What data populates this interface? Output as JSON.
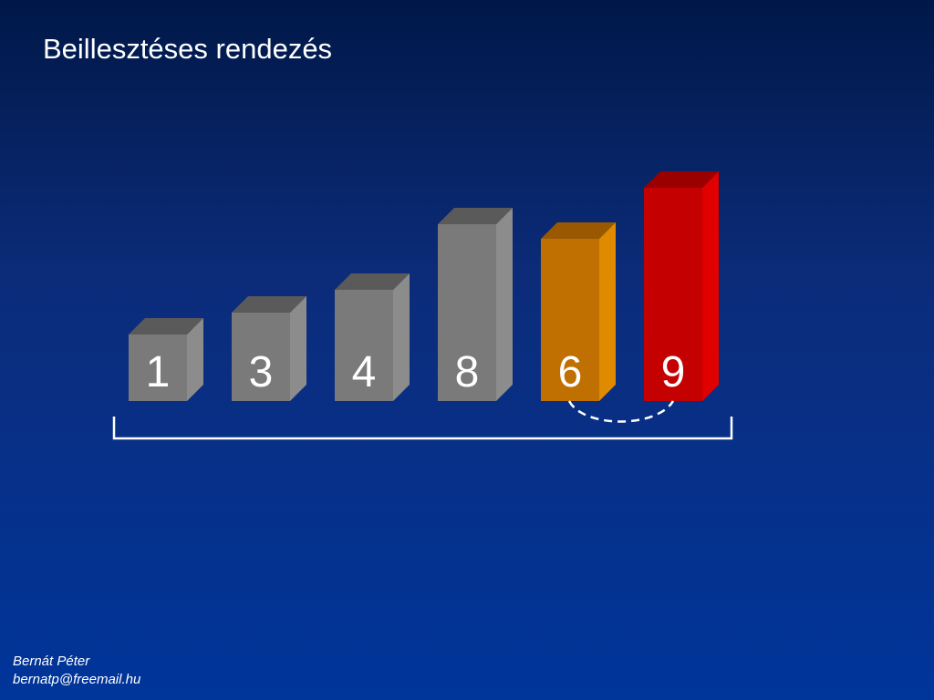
{
  "slide": {
    "title": "Beillesztéses rendezés"
  },
  "bars": [
    {
      "label": "1",
      "value": 1,
      "state": "sorted"
    },
    {
      "label": "3",
      "value": 3,
      "state": "sorted"
    },
    {
      "label": "4",
      "value": 4,
      "state": "sorted"
    },
    {
      "label": "8",
      "value": 8,
      "state": "sorted"
    },
    {
      "label": "6",
      "value": 6,
      "state": "current"
    },
    {
      "label": "9",
      "value": 9,
      "state": "compared"
    }
  ],
  "colors": {
    "sorted": {
      "front": "#7a7a7a",
      "top": "#5a5a5a",
      "side": "#8c8c8c"
    },
    "current": {
      "front": "#c07000",
      "top": "#9a5800",
      "side": "#e08a00"
    },
    "compared": {
      "front": "#c40000",
      "top": "#9a0000",
      "side": "#e00000"
    },
    "background_top": "#001848",
    "background_bottom": "#00359a"
  },
  "footer": {
    "author": "Bernát Péter",
    "email": "bernatp@freemail.hu"
  }
}
